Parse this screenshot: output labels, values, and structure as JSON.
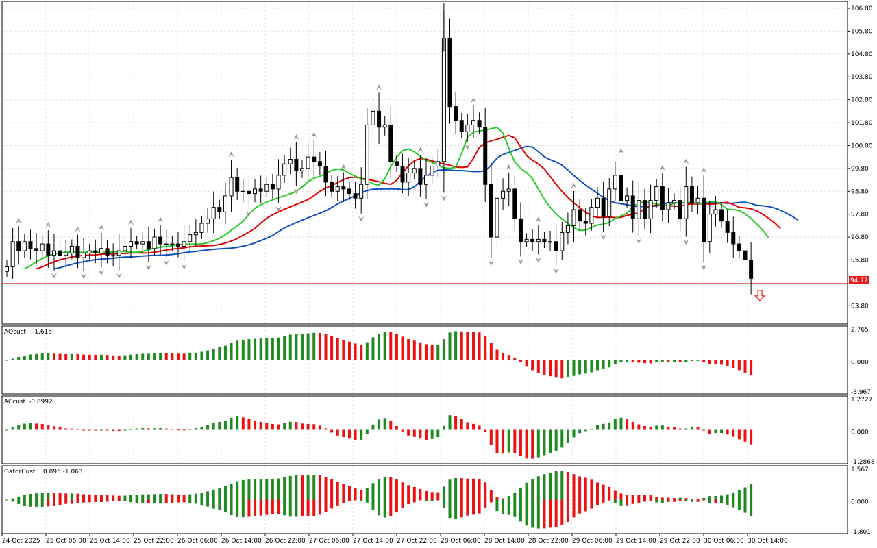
{
  "chart_data": [
    {
      "type": "candlestick",
      "x_labels": [
        "24 Oct 2025",
        "25 Oct 06:00",
        "25 Oct 14:00",
        "25 Oct 22:00",
        "26 Oct 06:00",
        "26 Oct 14:00",
        "26 Oct 22:00",
        "27 Oct 06:00",
        "27 Oct 14:00",
        "27 Oct 22:00",
        "28 Oct 06:00",
        "28 Oct 14:00",
        "28 Oct 22:00",
        "29 Oct 06:00",
        "29 Oct 14:00",
        "29 Oct 22:00",
        "30 Oct 06:00",
        "30 Oct 14:00"
      ],
      "y_ticks": [
        "106.80",
        "105.80",
        "104.80",
        "103.80",
        "102.80",
        "101.80",
        "100.80",
        "99.80",
        "98.80",
        "97.80",
        "96.80",
        "95.80",
        "93.80"
      ],
      "ylim": [
        93.0,
        107.1
      ],
      "current_price": "94.77",
      "current_price_value": 94.77,
      "signal": "sell-arrow",
      "lines": [
        {
          "name": "blue",
          "color": "#0b4fc0"
        },
        {
          "name": "red",
          "color": "#e00000"
        },
        {
          "name": "green",
          "color": "#22cc22"
        }
      ],
      "closes": [
        95.5,
        96.6,
        96.2,
        96.6,
        96.3,
        96.2,
        96.5,
        96.0,
        96.2,
        96.0,
        96.1,
        96.4,
        95.9,
        96.1,
        96.2,
        96.1,
        96.3,
        96.0,
        96.0,
        96.2,
        96.4,
        96.6,
        96.5,
        96.6,
        96.3,
        96.8,
        96.5,
        96.5,
        96.5,
        96.4,
        96.6,
        96.9,
        97.0,
        97.4,
        97.6,
        98.1,
        97.9,
        98.6,
        99.4,
        98.8,
        98.8,
        98.7,
        98.9,
        98.8,
        99.1,
        98.9,
        99.5,
        100.0,
        100.2,
        99.7,
        99.8,
        100.3,
        100.1,
        99.9,
        99.2,
        98.8,
        99.0,
        98.9,
        98.7,
        98.5,
        99.1,
        101.7,
        102.3,
        101.6,
        101.7,
        100.1,
        99.9,
        99.2,
        99.6,
        99.8,
        99.1,
        99.5,
        99.9,
        100.1,
        105.5,
        102.5,
        101.9,
        101.4,
        101.7,
        101.9,
        101.6,
        99.1,
        96.8,
        98.5,
        98.8,
        98.9,
        97.6,
        96.6,
        96.7,
        96.6,
        96.7,
        96.6,
        96.6,
        96.2,
        97.0,
        97.3,
        98.0,
        97.5,
        97.4,
        98.1,
        98.5,
        97.7,
        98.9,
        99.5,
        98.4,
        98.6,
        97.6,
        98.4,
        97.6,
        98.4,
        99.0,
        98.0,
        98.3,
        98.4,
        97.6,
        99.0,
        98.3,
        98.5,
        96.6,
        97.8,
        98.0,
        97.5,
        97.0,
        96.5,
        96.2,
        95.8,
        95.0
      ],
      "series_panels": [
        {
          "name": "AOcust",
          "value": "-1.615",
          "ticks": [
            "2.765",
            "0.000",
            "-3.967"
          ]
        },
        {
          "name": "ACcust",
          "value": "-0.8992",
          "ticks": [
            "1.2727",
            "0.000",
            "-1.2868"
          ]
        },
        {
          "name": "GatorCust",
          "value": "0.895 -1.063",
          "ticks": [
            "1.567",
            "0.000",
            "-1.801"
          ]
        }
      ]
    }
  ],
  "colors": {
    "bull_bar": "#1f8a1f",
    "bear_bar": "#ee1111",
    "grid": "#e4e4e4",
    "price_line": "#cc2222",
    "price_tag_bg": "#e81b1b"
  }
}
